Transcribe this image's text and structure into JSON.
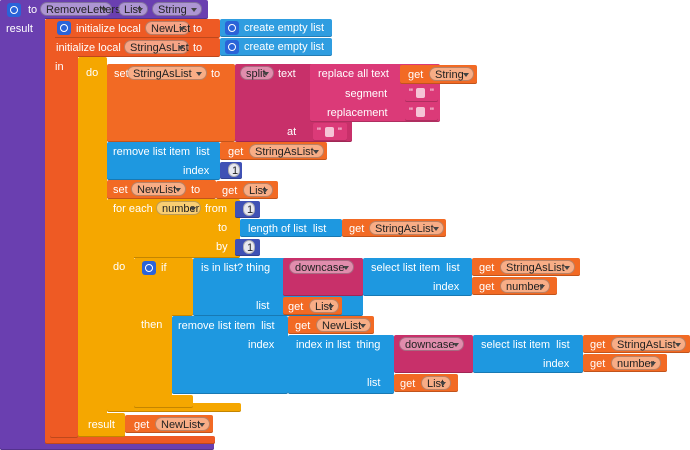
{
  "blocks": [
    {
      "texts": [
        "to",
        "RemoveLetters",
        "List",
        "String",
        "result"
      ]
    },
    {
      "texts": [
        "initialize local",
        "NewList",
        "to"
      ]
    },
    {
      "texts": [
        "create empty list"
      ]
    },
    {
      "texts": [
        "initialize local",
        "StringAsList",
        "to",
        "in"
      ]
    },
    {
      "texts": [
        "create empty list"
      ]
    },
    {
      "texts": [
        "do",
        "result"
      ]
    },
    {
      "texts": [
        "set",
        "StringAsList",
        "to"
      ]
    },
    {
      "texts": [
        "split",
        "text",
        "at"
      ]
    },
    {
      "texts": [
        "replace all text",
        "segment",
        "replacement"
      ]
    },
    {
      "texts": [
        "get",
        "String"
      ]
    },
    {
      "texts": [
        "\"",
        "\""
      ]
    },
    {
      "texts": [
        "\"",
        "\""
      ]
    },
    {
      "texts": [
        "\"",
        "\""
      ]
    },
    {
      "texts": [
        "remove list item  list",
        "index"
      ]
    },
    {
      "texts": [
        "get",
        "StringAsList"
      ]
    },
    {
      "texts": [
        1
      ]
    },
    {
      "texts": [
        "set",
        "NewList",
        "to"
      ]
    },
    {
      "texts": [
        "get",
        "List"
      ]
    },
    {
      "texts": [
        "for each",
        "number",
        "from",
        "to",
        "by",
        "do"
      ]
    },
    {
      "texts": [
        1
      ]
    },
    {
      "texts": [
        "length of list  list"
      ]
    },
    {
      "texts": [
        "get",
        "StringAsList"
      ]
    },
    {
      "texts": [
        1
      ]
    },
    {
      "texts": [
        "if",
        "then"
      ]
    },
    {
      "texts": [
        "is in list? thing",
        "list"
      ]
    },
    {
      "texts": [
        "downcase"
      ]
    },
    {
      "texts": [
        "select list item  list",
        "index"
      ]
    },
    {
      "texts": [
        "get",
        "StringAsList"
      ]
    },
    {
      "texts": [
        "get",
        "number"
      ]
    },
    {
      "texts": [
        "get",
        "List"
      ]
    },
    {
      "texts": [
        "remove list item  list",
        "index"
      ]
    },
    {
      "texts": [
        "get",
        "NewList"
      ]
    },
    {
      "texts": [
        "index in list  thing",
        "list"
      ]
    },
    {
      "texts": [
        "downcase"
      ]
    },
    {
      "texts": [
        "select list item  list",
        "index"
      ]
    },
    {
      "texts": [
        "get",
        "StringAsList"
      ]
    },
    {
      "texts": [
        "get",
        "number"
      ]
    },
    {
      "texts": [
        "get",
        "List"
      ]
    },
    {
      "texts": [
        "get",
        "NewList"
      ]
    }
  ]
}
